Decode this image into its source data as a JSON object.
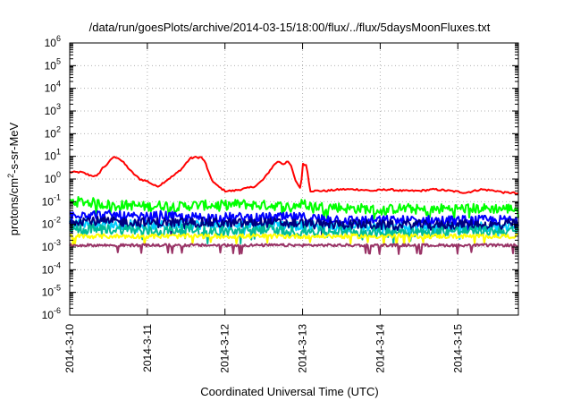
{
  "chart_data": {
    "type": "line",
    "title": "/data/run/goesPlots/archive/2014-03-15/18:00/flux/../flux/5daysMoonFluxes.txt",
    "xlabel": "Coordinated Universal Time (UTC)",
    "ylabel": "protons/cm2-s-sr-MeV",
    "ylabel_parts": {
      "base": "protons/cm",
      "sup": "2",
      "rest": "-s-sr-MeV"
    },
    "x_ticks": [
      "2014-3-10",
      "2014-3-11",
      "2014-3-12",
      "2014-3-13",
      "2014-3-14",
      "2014-3-15"
    ],
    "xlim": [
      0,
      5.78
    ],
    "y_scale": "log",
    "ylim": [
      1e-06,
      1000000.0
    ],
    "y_ticks": [
      {
        "base": "10",
        "exp": "-6"
      },
      {
        "base": "10",
        "exp": "-5"
      },
      {
        "base": "10",
        "exp": "-4"
      },
      {
        "base": "10",
        "exp": "-3"
      },
      {
        "base": "10",
        "exp": "-2"
      },
      {
        "base": "10",
        "exp": "-1"
      },
      {
        "base": "10",
        "exp": "0"
      },
      {
        "base": "10",
        "exp": "1"
      },
      {
        "base": "10",
        "exp": "2"
      },
      {
        "base": "10",
        "exp": "3"
      },
      {
        "base": "10",
        "exp": "4"
      },
      {
        "base": "10",
        "exp": "5"
      },
      {
        "base": "10",
        "exp": "6"
      }
    ],
    "grid": true,
    "legend": "none",
    "x_units": "days since 2014-03-10 00:00 UTC",
    "series": [
      {
        "color": "#ff0000",
        "width": 2,
        "x": [
          0,
          0.15,
          0.25,
          0.35,
          0.42,
          0.5,
          0.55,
          0.62,
          0.7,
          0.8,
          0.9,
          1.0,
          1.1,
          1.15,
          1.25,
          1.35,
          1.45,
          1.5,
          1.55,
          1.6,
          1.7,
          1.75,
          1.82,
          1.9,
          2.0,
          2.1,
          2.2,
          2.3,
          2.4,
          2.5,
          2.6,
          2.65,
          2.7,
          2.75,
          2.8,
          2.85,
          2.9,
          2.95,
          2.98,
          3.0,
          3.05,
          3.1,
          3.2,
          3.3,
          3.5,
          3.7,
          3.9,
          4.1,
          4.3,
          4.5,
          4.7,
          4.9,
          5.1,
          5.3,
          5.5,
          5.6,
          5.7,
          5.78
        ],
        "y": [
          2.0,
          2.0,
          1.5,
          1.3,
          3.0,
          5.0,
          9.0,
          9.0,
          5.0,
          2.0,
          1.0,
          0.8,
          0.5,
          0.5,
          0.9,
          1.5,
          3.0,
          5.0,
          8.0,
          9.0,
          9.0,
          5.0,
          1.0,
          0.5,
          0.3,
          0.3,
          0.35,
          0.4,
          0.5,
          1.0,
          3.0,
          5.0,
          6.0,
          4.5,
          6.0,
          4.0,
          1.0,
          0.5,
          0.4,
          5.0,
          4.0,
          0.3,
          0.3,
          0.3,
          0.35,
          0.35,
          0.3,
          0.35,
          0.3,
          0.3,
          0.35,
          0.3,
          0.25,
          0.35,
          0.3,
          0.25,
          0.25,
          0.22
        ]
      },
      {
        "color": "#00ff00",
        "width": 2,
        "x": [
          0,
          0.2,
          0.4,
          0.6,
          0.8,
          1.0,
          1.2,
          1.4,
          1.6,
          1.8,
          2.0,
          2.2,
          2.4,
          2.6,
          2.8,
          3.0,
          3.2,
          3.4,
          3.6,
          3.8,
          4.0,
          4.2,
          4.4,
          4.6,
          4.8,
          5.0,
          5.2,
          5.4,
          5.6,
          5.78
        ],
        "y": [
          0.1,
          0.1,
          0.08,
          0.07,
          0.07,
          0.06,
          0.07,
          0.06,
          0.07,
          0.07,
          0.07,
          0.08,
          0.07,
          0.07,
          0.06,
          0.08,
          0.06,
          0.06,
          0.05,
          0.05,
          0.04,
          0.05,
          0.05,
          0.04,
          0.05,
          0.05,
          0.05,
          0.05,
          0.05,
          0.05
        ]
      },
      {
        "color": "#00ccff",
        "width": 2,
        "x": [
          0,
          0.2,
          0.4,
          0.6,
          0.8,
          1.0,
          1.2,
          1.4,
          1.6,
          1.8,
          2.0,
          2.2,
          2.4,
          2.6,
          2.8,
          3.0,
          3.2,
          3.4,
          3.6,
          3.8,
          4.0,
          4.2,
          4.4,
          4.6,
          4.8,
          5.0,
          5.2,
          5.4,
          5.6,
          5.78
        ],
        "y": [
          0.012,
          0.012,
          0.01,
          0.01,
          0.01,
          0.009,
          0.009,
          0.01,
          0.01,
          0.01,
          0.009,
          0.009,
          0.01,
          0.01,
          0.009,
          0.009,
          0.008,
          0.008,
          0.008,
          0.008,
          0.007,
          0.008,
          0.008,
          0.007,
          0.007,
          0.008,
          0.008,
          0.007,
          0.008,
          0.008
        ]
      },
      {
        "color": "#0000ff",
        "width": 2,
        "x": [
          0,
          0.2,
          0.4,
          0.6,
          0.8,
          1.0,
          1.2,
          1.4,
          1.6,
          1.8,
          2.0,
          2.2,
          2.4,
          2.6,
          2.8,
          3.0,
          3.2,
          3.4,
          3.6,
          3.8,
          4.0,
          4.2,
          4.4,
          4.6,
          4.8,
          5.0,
          5.2,
          5.4,
          5.6,
          5.78
        ],
        "y": [
          0.03,
          0.03,
          0.025,
          0.025,
          0.02,
          0.02,
          0.025,
          0.02,
          0.02,
          0.02,
          0.02,
          0.02,
          0.02,
          0.02,
          0.02,
          0.02,
          0.018,
          0.018,
          0.015,
          0.015,
          0.015,
          0.015,
          0.015,
          0.015,
          0.015,
          0.015,
          0.015,
          0.015,
          0.015,
          0.015
        ]
      },
      {
        "color": "#000080",
        "width": 2,
        "x": [
          0,
          0.2,
          0.4,
          0.6,
          0.8,
          1.0,
          1.2,
          1.4,
          1.6,
          1.8,
          2.0,
          2.2,
          2.4,
          2.6,
          2.8,
          3.0,
          3.2,
          3.4,
          3.6,
          3.8,
          4.0,
          4.2,
          4.4,
          4.6,
          4.8,
          5.0,
          5.2,
          5.4,
          5.6,
          5.78
        ],
        "y": [
          0.015,
          0.015,
          0.013,
          0.013,
          0.012,
          0.012,
          0.012,
          0.012,
          0.012,
          0.012,
          0.011,
          0.011,
          0.012,
          0.012,
          0.011,
          0.011,
          0.01,
          0.01,
          0.01,
          0.01,
          0.009,
          0.01,
          0.01,
          0.009,
          0.009,
          0.01,
          0.01,
          0.009,
          0.01,
          0.01
        ]
      },
      {
        "color": "#00bb99",
        "width": 2,
        "x": [
          0,
          0.2,
          0.4,
          0.6,
          0.8,
          1.0,
          1.2,
          1.4,
          1.6,
          1.8,
          2.0,
          2.2,
          2.4,
          2.6,
          2.8,
          3.0,
          3.2,
          3.4,
          3.6,
          3.8,
          4.0,
          4.2,
          4.4,
          4.6,
          4.8,
          5.0,
          5.2,
          5.4,
          5.6,
          5.78
        ],
        "y": [
          0.006,
          0.006,
          0.006,
          0.006,
          0.006,
          0.005,
          0.005,
          0.006,
          0.006,
          0.005,
          0.005,
          0.005,
          0.006,
          0.006,
          0.005,
          0.005,
          0.005,
          0.005,
          0.005,
          0.005,
          0.004,
          0.005,
          0.005,
          0.004,
          0.005,
          0.005,
          0.005,
          0.005,
          0.005,
          0.005
        ]
      },
      {
        "color": "#ffff00",
        "width": 2,
        "x": [
          0,
          0.2,
          0.4,
          0.6,
          0.8,
          1.0,
          1.2,
          1.4,
          1.6,
          1.8,
          2.0,
          2.2,
          2.4,
          2.6,
          2.8,
          3.0,
          3.2,
          3.4,
          3.6,
          3.8,
          4.0,
          4.2,
          4.4,
          4.6,
          4.8,
          5.0,
          5.2,
          5.4,
          5.6,
          5.78
        ],
        "y": [
          0.003,
          0.003,
          0.003,
          0.003,
          0.003,
          0.003,
          0.003,
          0.003,
          0.003,
          0.003,
          0.003,
          0.003,
          0.003,
          0.003,
          0.003,
          0.003,
          0.003,
          0.003,
          0.003,
          0.003,
          0.003,
          0.003,
          0.003,
          0.003,
          0.003,
          0.003,
          0.003,
          0.003,
          0.003,
          0.003
        ]
      },
      {
        "color": "#993366",
        "width": 2,
        "x": [
          0,
          0.2,
          0.4,
          0.6,
          0.8,
          1.0,
          1.2,
          1.4,
          1.6,
          1.8,
          2.0,
          2.2,
          2.4,
          2.6,
          2.8,
          3.0,
          3.2,
          3.4,
          3.6,
          3.8,
          4.0,
          4.2,
          4.4,
          4.6,
          4.8,
          5.0,
          5.2,
          5.4,
          5.6,
          5.78
        ],
        "y": [
          0.0012,
          0.0012,
          0.0012,
          0.0012,
          0.0012,
          0.0012,
          0.0012,
          0.0012,
          0.0012,
          0.0012,
          0.0012,
          0.0012,
          0.0012,
          0.0012,
          0.0012,
          0.0012,
          0.0012,
          0.0012,
          0.0012,
          0.0012,
          0.0012,
          0.0012,
          0.0012,
          0.0012,
          0.0012,
          0.0012,
          0.0012,
          0.0012,
          0.0012,
          0.0012
        ]
      }
    ]
  }
}
